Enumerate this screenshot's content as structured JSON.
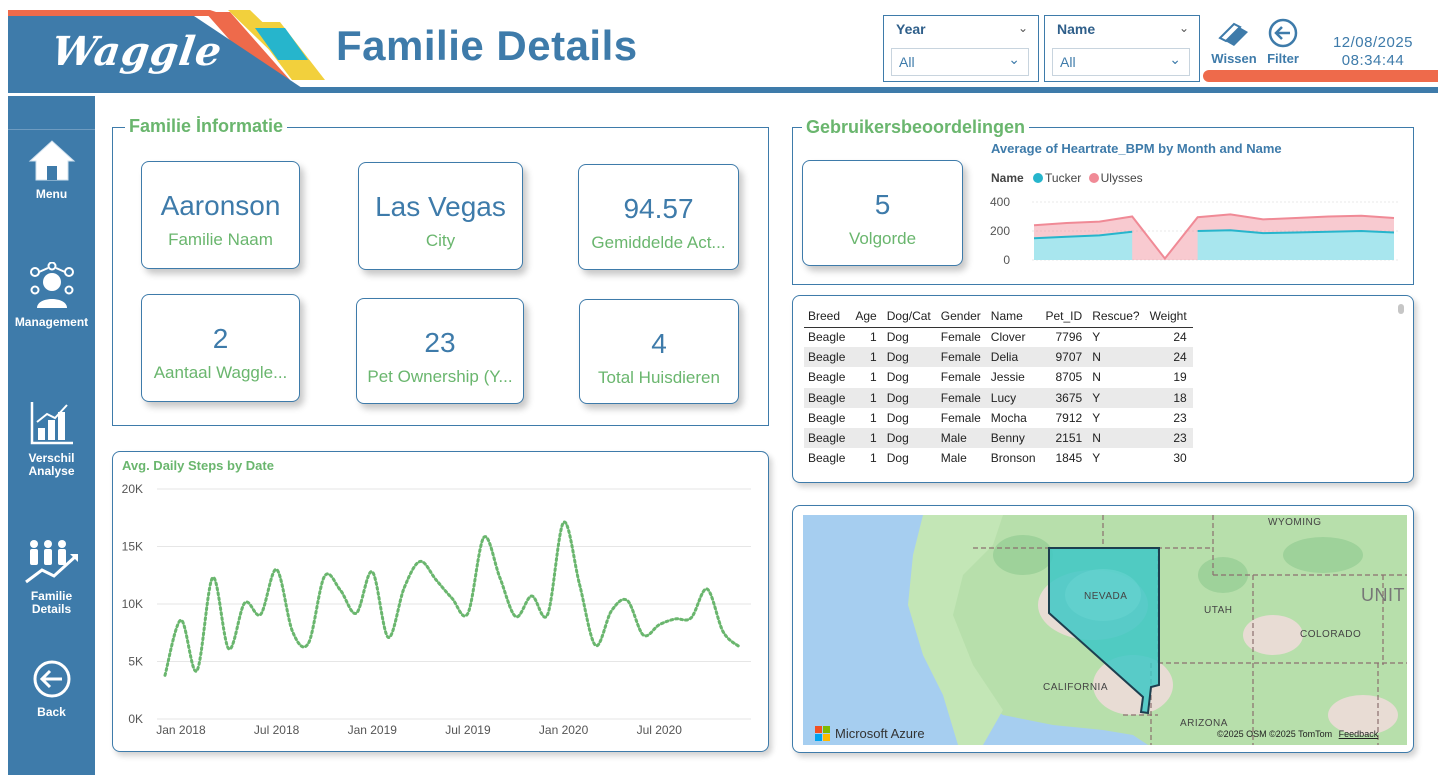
{
  "header": {
    "logo_text": "Waggle",
    "title": "Familie Details",
    "slicers": [
      {
        "title": "Year",
        "value": "All"
      },
      {
        "title": "Name",
        "value": "All"
      }
    ],
    "clear_label": "Wissen",
    "filter_label": "Filter",
    "date": "12/08/2025",
    "time": "08:34:44"
  },
  "colors": {
    "brand_blue": "#3e7baa",
    "accent_green": "#6ab66e",
    "accent_orange": "#ee6a4b",
    "tucker": "#26b5cc",
    "ulysses": "#f08a96"
  },
  "sidebar": {
    "items": [
      {
        "label": "Menu",
        "icon": "home-icon"
      },
      {
        "label": "Management",
        "icon": "management-icon"
      },
      {
        "label_lines": [
          "Verschil",
          "Analyse"
        ],
        "icon": "bar-chart-icon"
      },
      {
        "label_lines": [
          "Familie",
          "Details"
        ],
        "icon": "family-icon"
      },
      {
        "label": "Back",
        "icon": "back-arrow-icon"
      }
    ]
  },
  "family_info": {
    "title": "Familie İnformatie",
    "cards": [
      {
        "value": "Aaronson",
        "label": "Familie Naam"
      },
      {
        "value": "Las Vegas",
        "label": "City"
      },
      {
        "value": "94.57",
        "label": "Gemiddelde Act..."
      },
      {
        "value": "2",
        "label": "Aantaal Waggle..."
      },
      {
        "value": "23",
        "label": "Pet Ownership (Y..."
      },
      {
        "value": "4",
        "label": "Total Huisdieren"
      }
    ]
  },
  "reviews": {
    "title": "Gebruikersbeoordelingen",
    "card": {
      "value": "5",
      "label": "Volgorde"
    }
  },
  "chart_data": [
    {
      "type": "line",
      "title": "Avg. Daily Steps by Date",
      "x_ticks": [
        "Jan 2018",
        "Jul 2018",
        "Jan 2019",
        "Jul 2019",
        "Jan 2020",
        "Jul 2020"
      ],
      "y_ticks": [
        "0K",
        "5K",
        "10K",
        "15K",
        "20K"
      ],
      "ylim": [
        0,
        20000
      ],
      "grid": true,
      "x": [
        "2017-12",
        "2018-01",
        "2018-02",
        "2018-03",
        "2018-04",
        "2018-05",
        "2018-06",
        "2018-07",
        "2018-08",
        "2018-09",
        "2018-10",
        "2018-11",
        "2018-12",
        "2019-01",
        "2019-02",
        "2019-03",
        "2019-04",
        "2019-05",
        "2019-06",
        "2019-07",
        "2019-08",
        "2019-09",
        "2019-10",
        "2019-11",
        "2019-12",
        "2020-01",
        "2020-02",
        "2020-03",
        "2020-04",
        "2020-05",
        "2020-06",
        "2020-07",
        "2020-08",
        "2020-09",
        "2020-10",
        "2020-11",
        "2020-12"
      ],
      "values": [
        3800,
        8600,
        4200,
        12300,
        6100,
        10100,
        9100,
        13000,
        7600,
        6600,
        12400,
        11200,
        9200,
        12800,
        7100,
        11400,
        13700,
        12100,
        10500,
        9200,
        15800,
        12300,
        8900,
        10700,
        9100,
        17100,
        11700,
        6400,
        9400,
        10300,
        7300,
        8200,
        8700,
        8800,
        11300,
        7600,
        6300
      ],
      "series_style": "dotted",
      "color": "#6ab66e"
    },
    {
      "type": "area",
      "title": "Average of Heartrate_BPM by Month and Name",
      "legend_title": "Name",
      "legend_position": "top-left",
      "y_ticks": [
        "0",
        "200",
        "400"
      ],
      "ylim": [
        0,
        400
      ],
      "series": [
        {
          "name": "Tucker",
          "color": "#26b5cc",
          "values": [
            150,
            160,
            170,
            195,
            null,
            200,
            205,
            185,
            190,
            195,
            200,
            190
          ]
        },
        {
          "name": "Ulysses",
          "color": "#f08a96",
          "values": [
            240,
            255,
            265,
            300,
            10,
            295,
            315,
            280,
            290,
            300,
            305,
            290
          ]
        }
      ]
    }
  ],
  "table": {
    "columns": [
      "Breed",
      "Age",
      "Dog/Cat",
      "Gender",
      "Name",
      "Pet_ID",
      "Rescue?",
      "Weight"
    ],
    "rows": [
      [
        "Beagle",
        "1",
        "Dog",
        "Female",
        "Clover",
        "7796",
        "Y",
        "24"
      ],
      [
        "Beagle",
        "1",
        "Dog",
        "Female",
        "Delia",
        "9707",
        "N",
        "24"
      ],
      [
        "Beagle",
        "1",
        "Dog",
        "Female",
        "Jessie",
        "8705",
        "N",
        "19"
      ],
      [
        "Beagle",
        "1",
        "Dog",
        "Female",
        "Lucy",
        "3675",
        "Y",
        "18"
      ],
      [
        "Beagle",
        "1",
        "Dog",
        "Female",
        "Mocha",
        "7912",
        "Y",
        "23"
      ],
      [
        "Beagle",
        "1",
        "Dog",
        "Male",
        "Benny",
        "2151",
        "N",
        "23"
      ],
      [
        "Beagle",
        "1",
        "Dog",
        "Male",
        "Bronson",
        "1845",
        "Y",
        "30"
      ]
    ]
  },
  "map": {
    "labels": {
      "wyoming": "WYOMING",
      "nevada": "NEVADA",
      "utah": "UTAH",
      "colorado": "COLORADO",
      "california": "CALIFORNIA",
      "arizona": "ARIZONA",
      "united": "UNIT"
    },
    "provider": "Microsoft Azure",
    "attribution": "©2025 OSM  ©2025 TomTom",
    "feedback": "Feedback",
    "highlight_state": "Nevada",
    "highlight_color": "#3ec8c6"
  }
}
